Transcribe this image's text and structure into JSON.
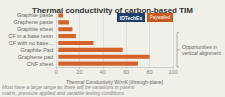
{
  "chart_data": {
    "type": "bar",
    "orientation": "horizontal",
    "title": "Thermal conductivity of carbon-based TIM",
    "categories": [
      "Graphite paste",
      "Graphene paste",
      "Graphite sheet",
      "CF in a base resin",
      "CF with no base...",
      "Graphite Pad",
      "Graphene pad",
      "CNF sheet"
    ],
    "starts": [
      2,
      2,
      2,
      2,
      2,
      2,
      2,
      2
    ],
    "values": [
      4,
      9,
      12,
      15,
      30,
      55,
      78,
      68
    ],
    "color": "#d4622a",
    "xlabel": "Thermal Conductivity W/mK [through-plane]",
    "xlim": [
      0,
      100
    ],
    "xticks": [
      0,
      20,
      40,
      60,
      80,
      100
    ],
    "grid": true,
    "footnote": "Most have a large range as there will be variations in parent\nmatrix, pressure applied and variable testing conditions",
    "annotation": "Opportunities in\nvertical alignment",
    "logo_text": "IDTechEx",
    "logo_color": "#1e3f6e",
    "badge_text": "Paywalled",
    "badge_color": "#c85a20",
    "background_color": "#f0efe8"
  }
}
